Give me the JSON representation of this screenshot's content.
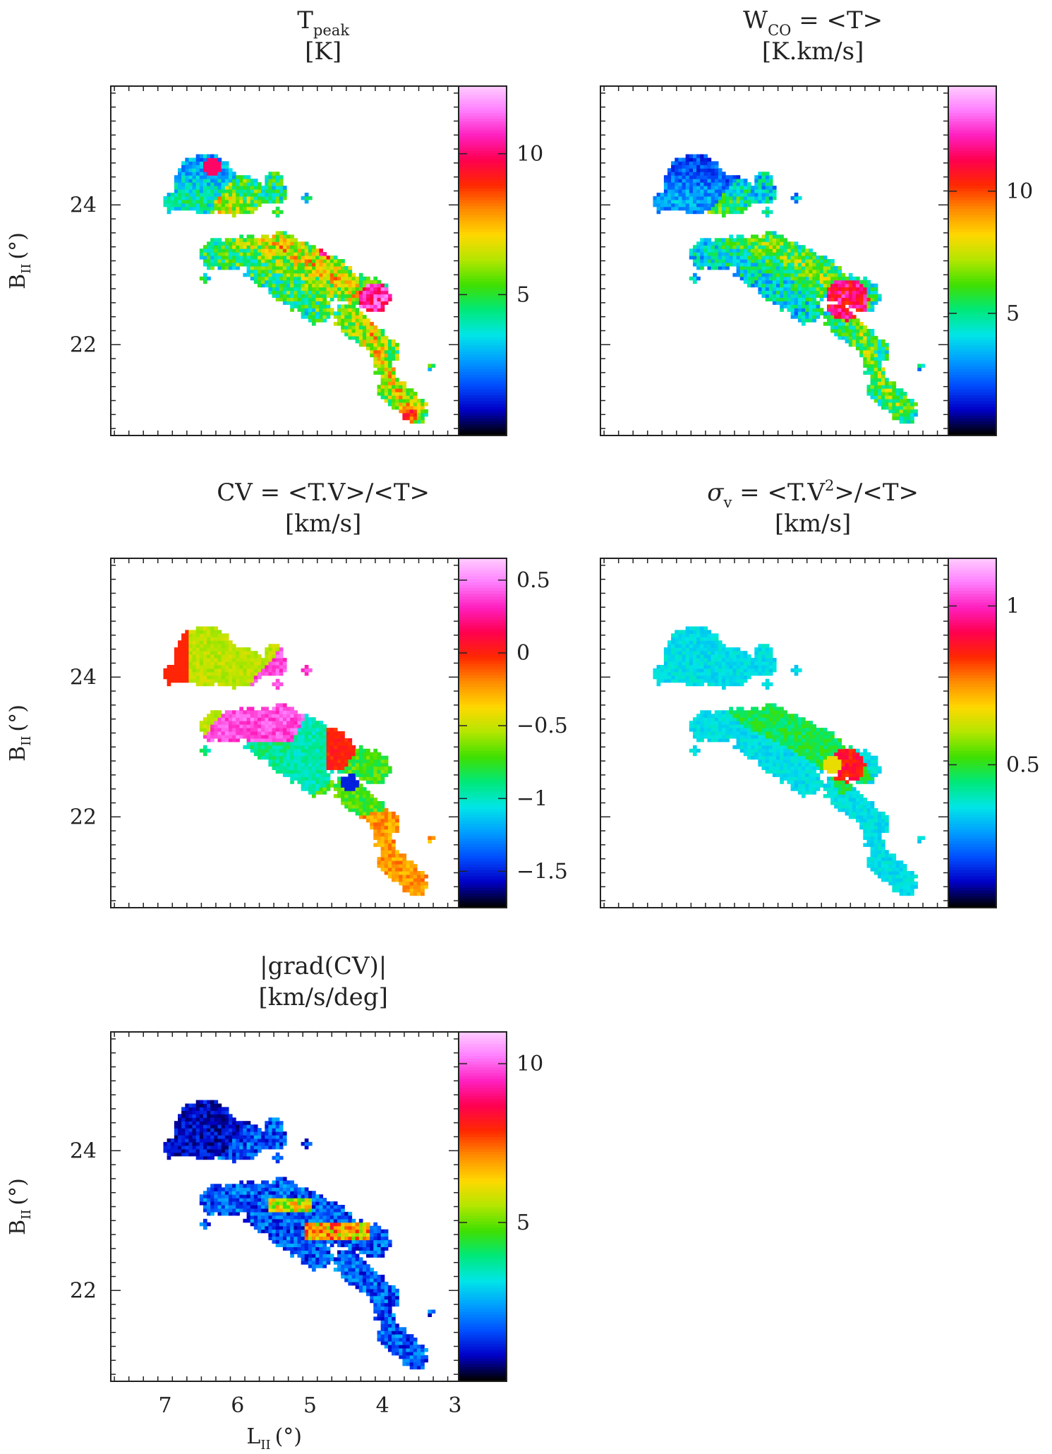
{
  "chart_data": [
    {
      "type": "heatmap",
      "id": "tpeak",
      "title_lines": [
        "T",
        "[K]"
      ],
      "title_sub": "peak",
      "ylabel": "B",
      "ylabel_sub": "II",
      "ylabel_unit": "(°)",
      "xlabel": "",
      "xlim": [
        7.75,
        2.95
      ],
      "ylim": [
        20.7,
        25.7
      ],
      "xticks": [],
      "yticks": [
        "24",
        "22"
      ],
      "colorbar": {
        "min": 0,
        "max": 12.4,
        "ticks": [
          5,
          10
        ],
        "tick_labels": [
          "5",
          "10"
        ]
      },
      "field": "tpeak"
    },
    {
      "type": "heatmap",
      "id": "wco",
      "title_lines": [
        "W",
        " = <T>",
        "[K.km/s]"
      ],
      "title_sub": "CO",
      "ylabel": "",
      "xlabel": "",
      "xlim": [
        7.75,
        2.95
      ],
      "ylim": [
        20.7,
        25.7
      ],
      "xticks": [],
      "yticks": [],
      "colorbar": {
        "min": 0,
        "max": 14.3,
        "ticks": [
          5,
          10
        ],
        "tick_labels": [
          "5",
          "10"
        ]
      },
      "field": "wco"
    },
    {
      "type": "heatmap",
      "id": "cv",
      "title_lines": [
        "CV = <T.V>/<T>",
        "[km/s]"
      ],
      "ylabel": "B",
      "ylabel_sub": "II",
      "ylabel_unit": "(°)",
      "xlabel": "",
      "xlim": [
        7.75,
        2.95
      ],
      "ylim": [
        20.7,
        25.7
      ],
      "xticks": [],
      "yticks": [
        "24",
        "22"
      ],
      "colorbar": {
        "min": -1.75,
        "max": 0.65,
        "ticks": [
          0.5,
          0,
          -0.5,
          -1,
          -1.5
        ],
        "tick_labels": [
          "0.5",
          "0",
          "−0.5",
          "−1",
          "−1.5"
        ]
      },
      "field": "cv"
    },
    {
      "type": "heatmap",
      "id": "sigma",
      "title_lines": [
        "σ",
        " = <T.V",
        ">/<T>",
        "[km/s]"
      ],
      "title_sub": "v",
      "title_sup": "2",
      "ylabel": "",
      "xlabel": "",
      "xlim": [
        7.75,
        2.95
      ],
      "ylim": [
        20.7,
        25.7
      ],
      "xticks": [],
      "yticks": [],
      "colorbar": {
        "min": 0.05,
        "max": 1.15,
        "ticks": [
          1,
          0.5
        ],
        "tick_labels": [
          "1",
          "0.5"
        ]
      },
      "field": "sigma"
    },
    {
      "type": "heatmap",
      "id": "grad",
      "title_lines": [
        "|grad(CV)|",
        "[km/s/deg]"
      ],
      "ylabel": "B",
      "ylabel_sub": "II",
      "ylabel_unit": "(°)",
      "xlabel": "L",
      "xlabel_sub": "II",
      "xlabel_unit": "(°)",
      "xlim": [
        7.75,
        2.95
      ],
      "ylim": [
        20.7,
        25.7
      ],
      "xticks": [
        "7",
        "6",
        "5",
        "4",
        "3"
      ],
      "yticks": [
        "24",
        "22"
      ],
      "colorbar": {
        "min": 0,
        "max": 11,
        "ticks": [
          5,
          10
        ],
        "tick_labels": [
          "5",
          "10"
        ]
      },
      "field": "grad"
    }
  ],
  "colormap": [
    "#000000",
    "#0000c8",
    "#0050ff",
    "#00a0ff",
    "#00e6e6",
    "#00e878",
    "#40e000",
    "#b4e600",
    "#ffd800",
    "#ff8c00",
    "#ff2800",
    "#ff0050",
    "#ff20c0",
    "#ff80ff",
    "#ffd0ff"
  ]
}
